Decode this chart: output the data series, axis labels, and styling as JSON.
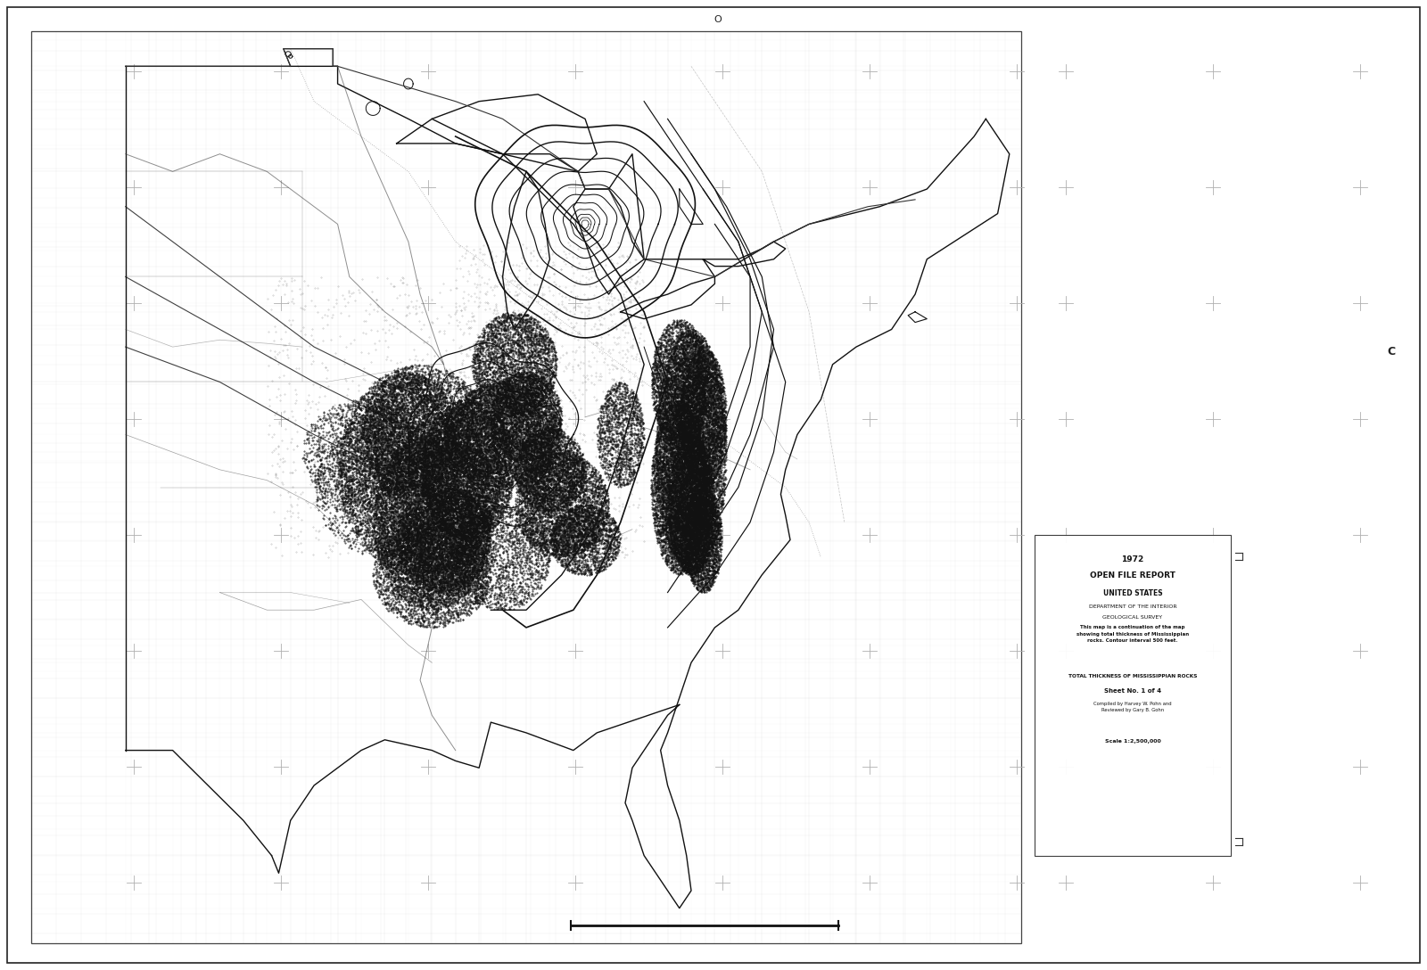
{
  "background_color": "#ffffff",
  "border_color": "#333333",
  "title_text_1": "1972",
  "title_text_2": "OPEN FILE REPORT",
  "title_text_3": "UNITED STATES",
  "title_text_4": "DEPARTMENT OF THE INTERIOR",
  "title_text_5": "GEOLOGICAL SURVEY",
  "main_title": "TOTAL THICKNESS OF MISSISSIPPIAN ROCKS",
  "subtitle": "Sheet No. 1 of 4",
  "authors": "Compiled by Harvey W. Pohn and\nReviewed by Gary B. Gohn",
  "scale": "Scale 1:2,500,000",
  "label_C": "C",
  "label_O": "O",
  "cross_color": "#b0b0b0",
  "grid_color": "#cccccc",
  "line_color": "#111111",
  "river_color": "#555555",
  "fig_width": 16.0,
  "fig_height": 10.88
}
